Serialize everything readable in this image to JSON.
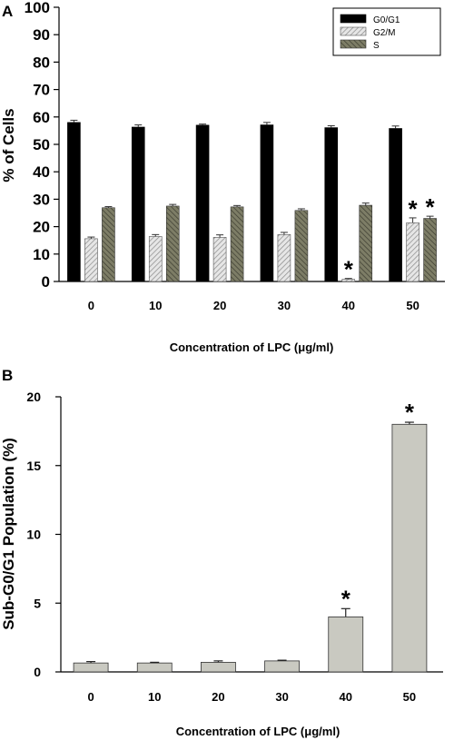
{
  "chart_data": [
    {
      "type": "bar",
      "panel_label": "A",
      "title": "",
      "xlabel": "Concentration of LPC (μg/ml)",
      "ylabel": "% of Cells",
      "ylim": [
        0,
        100
      ],
      "yticks": [
        0,
        10,
        20,
        30,
        40,
        50,
        60,
        70,
        80,
        90,
        100
      ],
      "categories": [
        "0",
        "10",
        "20",
        "30",
        "40",
        "50"
      ],
      "legend_position": "top-right",
      "series": [
        {
          "name": "G0/G1",
          "values": [
            58,
            56.3,
            57,
            57.1,
            56.1,
            55.8
          ],
          "errors": [
            0.8,
            0.8,
            0.4,
            0.9,
            0.7,
            0.9
          ],
          "color": "#000000"
        },
        {
          "name": "G2/M",
          "values": [
            15.6,
            16.4,
            16.1,
            17.1,
            0.8,
            21.4
          ],
          "errors": [
            0.6,
            0.7,
            0.9,
            0.8,
            0.3,
            1.8
          ],
          "color": "#cfcfcf"
        },
        {
          "name": "S",
          "values": [
            26.9,
            27.5,
            27.2,
            25.9,
            27.8,
            23.0
          ],
          "errors": [
            0.4,
            0.6,
            0.5,
            0.6,
            0.8,
            0.8
          ],
          "color": "#6b6b55"
        }
      ],
      "annotations": [
        {
          "category": "40",
          "series": "G2/M",
          "text": "*"
        },
        {
          "category": "50",
          "series": "G2/M",
          "text": "*"
        },
        {
          "category": "50",
          "series": "S",
          "text": "*"
        }
      ]
    },
    {
      "type": "bar",
      "panel_label": "B",
      "title": "",
      "xlabel": "Concentration of LPC (μg/ml)",
      "ylabel": "Sub-G0/G1 Population (%)",
      "ylim": [
        0,
        20
      ],
      "yticks": [
        0,
        5,
        10,
        15,
        20
      ],
      "categories": [
        "0",
        "10",
        "20",
        "30",
        "40",
        "50"
      ],
      "series": [
        {
          "name": "",
          "values": [
            0.65,
            0.65,
            0.7,
            0.8,
            4.0,
            18.0
          ],
          "errors": [
            0.1,
            0.05,
            0.1,
            0.05,
            0.6,
            0.15
          ],
          "color": "#c9c9c1"
        }
      ],
      "annotations": [
        {
          "category": "40",
          "text": "*"
        },
        {
          "category": "50",
          "text": "*"
        }
      ]
    }
  ]
}
